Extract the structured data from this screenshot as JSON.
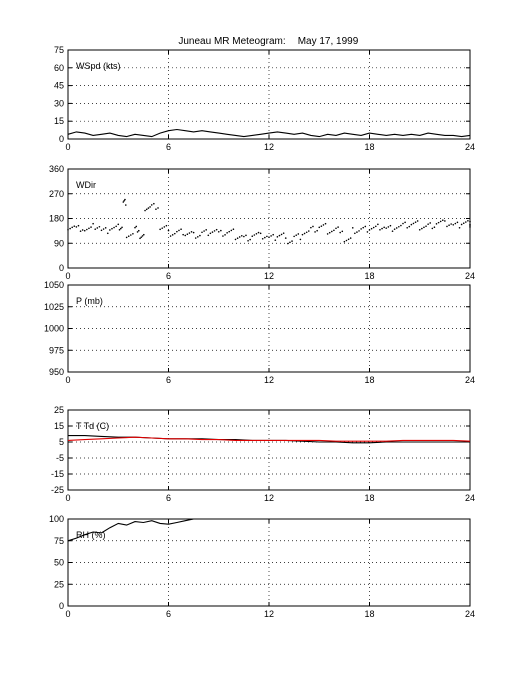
{
  "page": {
    "title": "Juneau MR Meteogram:",
    "date": "May 17, 1999"
  },
  "chart_data": [
    {
      "type": "line",
      "label": "WSpd (kts)",
      "ylim": [
        0,
        75
      ],
      "yticks": [
        0,
        15,
        30,
        45,
        60,
        75
      ],
      "xlim": [
        0,
        24
      ],
      "xticks": [
        0,
        6,
        12,
        18,
        24
      ],
      "grid": true,
      "series": [
        {
          "color": "#000000",
          "x": [
            0,
            0.5,
            1,
            1.5,
            2,
            2.5,
            3,
            3.5,
            4,
            4.5,
            5,
            5.5,
            6,
            6.5,
            7,
            7.5,
            8,
            8.5,
            9,
            9.5,
            10,
            10.5,
            11,
            11.5,
            12,
            12.5,
            13,
            13.5,
            14,
            14.5,
            15,
            15.5,
            16,
            16.5,
            17,
            17.5,
            18,
            18.5,
            19,
            19.5,
            20,
            20.5,
            21,
            21.5,
            22,
            22.5,
            23,
            23.5,
            24
          ],
          "values": [
            4,
            6,
            5,
            3,
            4,
            5,
            3,
            2,
            4,
            3,
            2,
            5,
            7,
            8,
            7,
            6,
            7,
            6,
            5,
            4,
            3,
            2,
            3,
            4,
            5,
            6,
            5,
            4,
            5,
            3,
            2,
            4,
            3,
            5,
            4,
            3,
            5,
            4,
            3,
            4,
            3,
            4,
            3,
            5,
            4,
            3,
            3,
            2,
            3
          ]
        }
      ]
    },
    {
      "type": "scatter",
      "label": "WDir",
      "ylim": [
        0,
        360
      ],
      "yticks": [
        0,
        90,
        180,
        270,
        360
      ],
      "xlim": [
        0,
        24
      ],
      "xticks": [
        0,
        6,
        12,
        18,
        24
      ],
      "grid": true,
      "series": [
        {
          "color": "#000000",
          "x": [
            0,
            0.5,
            1,
            1.5,
            2,
            2.5,
            3,
            3.3,
            3.5,
            4,
            4.3,
            4.6,
            5,
            5.5,
            6,
            6.5,
            7,
            7.5,
            8,
            8.5,
            9,
            9.5,
            10,
            10.5,
            11,
            11.5,
            12,
            12.5,
            13,
            13.5,
            14,
            14.5,
            15,
            15.5,
            16,
            16.5,
            17,
            17.5,
            18,
            18.5,
            19,
            19.5,
            20,
            20.5,
            21,
            21.5,
            22,
            22.5,
            23,
            23.5,
            24
          ],
          "values": [
            150,
            145,
            140,
            150,
            135,
            145,
            150,
            240,
            120,
            140,
            110,
            220,
            225,
            145,
            125,
            130,
            125,
            120,
            130,
            135,
            125,
            130,
            115,
            110,
            120,
            115,
            110,
            120,
            100,
            115,
            130,
            140,
            150,
            135,
            140,
            100,
            135,
            140,
            145,
            150,
            145,
            150,
            155,
            160,
            150,
            155,
            165,
            160,
            155,
            165,
            160
          ]
        }
      ]
    },
    {
      "type": "line",
      "label": "P (mb)",
      "ylim": [
        950,
        1050
      ],
      "yticks": [
        950,
        975,
        1000,
        1025,
        1050
      ],
      "xlim": [
        0,
        24
      ],
      "xticks": [
        0,
        6,
        12,
        18,
        24
      ],
      "grid": true,
      "series": []
    },
    {
      "type": "line",
      "label": "T Td (C)",
      "ylim": [
        -25,
        25
      ],
      "yticks": [
        -25,
        -15,
        -5,
        5,
        15,
        25
      ],
      "xlim": [
        0,
        24
      ],
      "xticks": [
        0,
        6,
        12,
        18,
        24
      ],
      "grid": true,
      "series": [
        {
          "color": "#000000",
          "x": [
            0,
            1,
            2,
            3,
            4,
            5,
            6,
            7,
            8,
            9,
            10,
            11,
            12,
            13,
            14,
            15,
            16,
            17,
            18,
            19,
            20,
            21,
            22,
            23,
            24
          ],
          "values": [
            9,
            9,
            8.5,
            8,
            8,
            7.5,
            7,
            7,
            7,
            6.5,
            6.5,
            6,
            6,
            6,
            5.5,
            5,
            5,
            4.5,
            4.5,
            5,
            5,
            5,
            5,
            5,
            5
          ]
        },
        {
          "color": "#e00000",
          "x": [
            0,
            1,
            2,
            3,
            4,
            5,
            6,
            7,
            8,
            9,
            10,
            11,
            12,
            13,
            14,
            15,
            16,
            17,
            18,
            19,
            20,
            21,
            22,
            23,
            24
          ],
          "values": [
            6,
            6.5,
            7,
            7.5,
            8,
            7.5,
            7,
            7,
            6.5,
            6.5,
            6,
            6,
            6,
            6,
            6,
            6,
            5.5,
            5.5,
            5.5,
            5.5,
            6,
            6,
            6,
            6,
            5.5
          ]
        }
      ]
    },
    {
      "type": "line",
      "label": "RH (%)",
      "ylim": [
        0,
        100
      ],
      "yticks": [
        0,
        25,
        50,
        75,
        100
      ],
      "xlim": [
        0,
        24
      ],
      "xticks": [
        0,
        6,
        12,
        18,
        24
      ],
      "grid": true,
      "series": [
        {
          "color": "#000000",
          "x": [
            0,
            0.5,
            1,
            1.5,
            2,
            2.5,
            3,
            3.5,
            4,
            4.5,
            5,
            5.5,
            6,
            6.5,
            7,
            7.5
          ],
          "values": [
            75,
            78,
            82,
            85,
            84,
            90,
            95,
            93,
            97,
            96,
            98,
            95,
            94,
            96,
            98,
            100
          ]
        }
      ]
    }
  ]
}
